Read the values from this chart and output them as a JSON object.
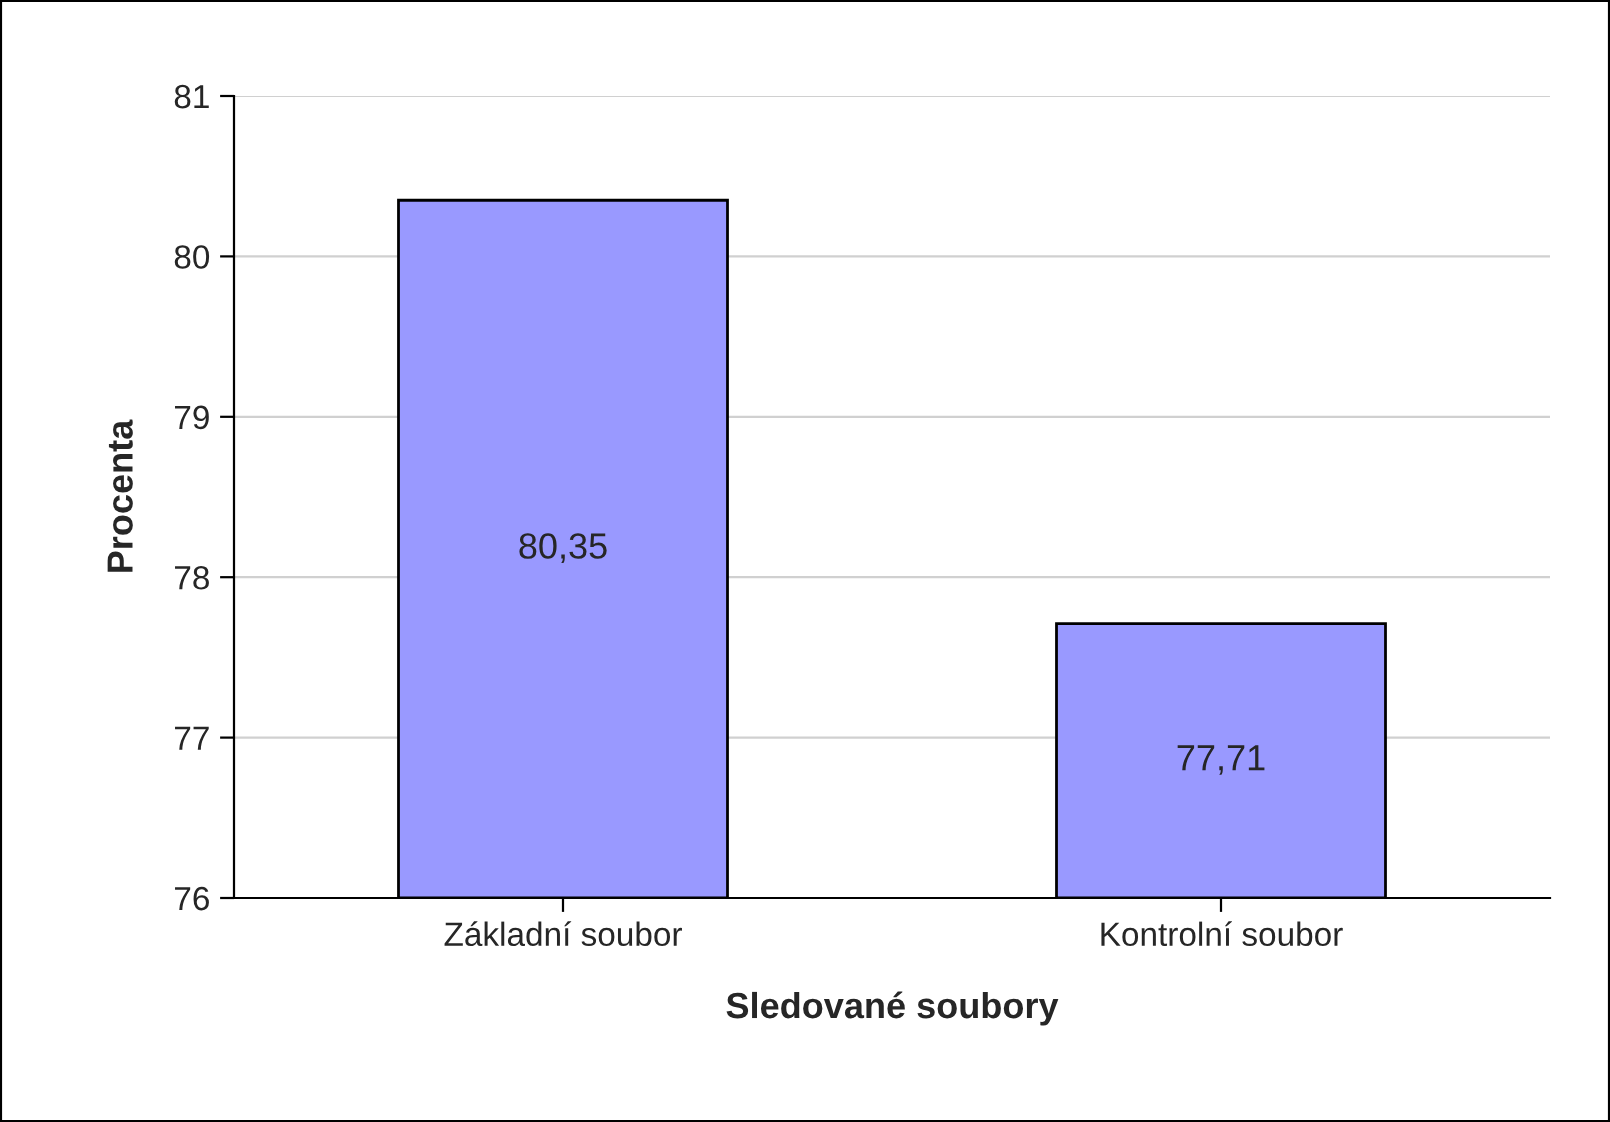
{
  "chart_data": {
    "type": "bar",
    "xlabel": "Sledované soubory",
    "ylabel": "Procenta",
    "categories": [
      "Základní soubor",
      "Kontrolní soubor"
    ],
    "values": [
      80.35,
      77.71
    ],
    "value_labels": [
      "80,35",
      "77,71"
    ],
    "color": "#9999ff",
    "ylim": [
      76,
      81
    ],
    "yticks": [
      76,
      77,
      78,
      79,
      80,
      81
    ],
    "grid": "y",
    "legend": false
  }
}
